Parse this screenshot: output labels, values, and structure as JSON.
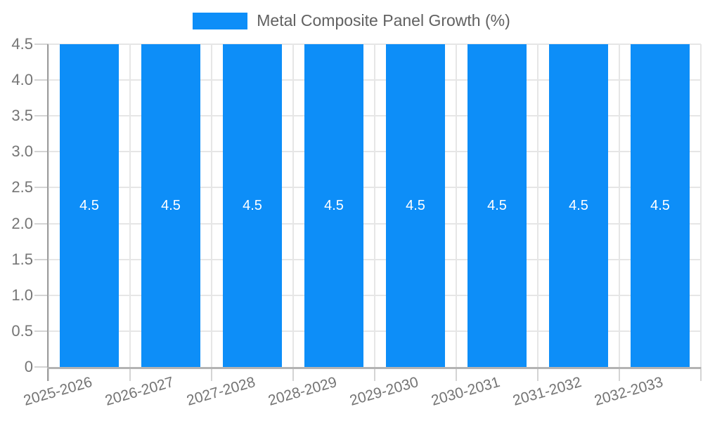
{
  "legend": {
    "label": "Metal Composite Panel Growth (%)"
  },
  "chart_data": {
    "type": "bar",
    "title": "Metal Composite Panel Growth (%)",
    "categories": [
      "2025-2026",
      "2026-2027",
      "2027-2028",
      "2028-2029",
      "2029-2030",
      "2030-2031",
      "2031-2032",
      "2032-2033"
    ],
    "series": [
      {
        "name": "Metal Composite Panel Growth (%)",
        "values": [
          4.5,
          4.5,
          4.5,
          4.5,
          4.5,
          4.5,
          4.5,
          4.5
        ],
        "value_labels": [
          "4.5",
          "4.5",
          "4.5",
          "4.5",
          "4.5",
          "4.5",
          "4.5",
          "4.5"
        ]
      }
    ],
    "ylim": [
      0,
      4.5
    ],
    "yticks": [
      {
        "v": 0,
        "label": "0"
      },
      {
        "v": 0.5,
        "label": "0.5"
      },
      {
        "v": 1.0,
        "label": "1.0"
      },
      {
        "v": 1.5,
        "label": "1.5"
      },
      {
        "v": 2.0,
        "label": "2.0"
      },
      {
        "v": 2.5,
        "label": "2.5"
      },
      {
        "v": 3.0,
        "label": "3.0"
      },
      {
        "v": 3.5,
        "label": "3.5"
      },
      {
        "v": 4.0,
        "label": "4.0"
      },
      {
        "v": 4.5,
        "label": "4.5"
      }
    ],
    "grid": true,
    "legend_position": "top",
    "colors": {
      "bar": "#0d8ef8",
      "bar_label": "#ffffff",
      "grid": "#e6e6e6",
      "tick": "#d4d4d4",
      "axis_y": "#9e9e9e",
      "axis_x": "#b3b3b3",
      "tick_label": "#757575",
      "legend_text": "#616161"
    }
  }
}
